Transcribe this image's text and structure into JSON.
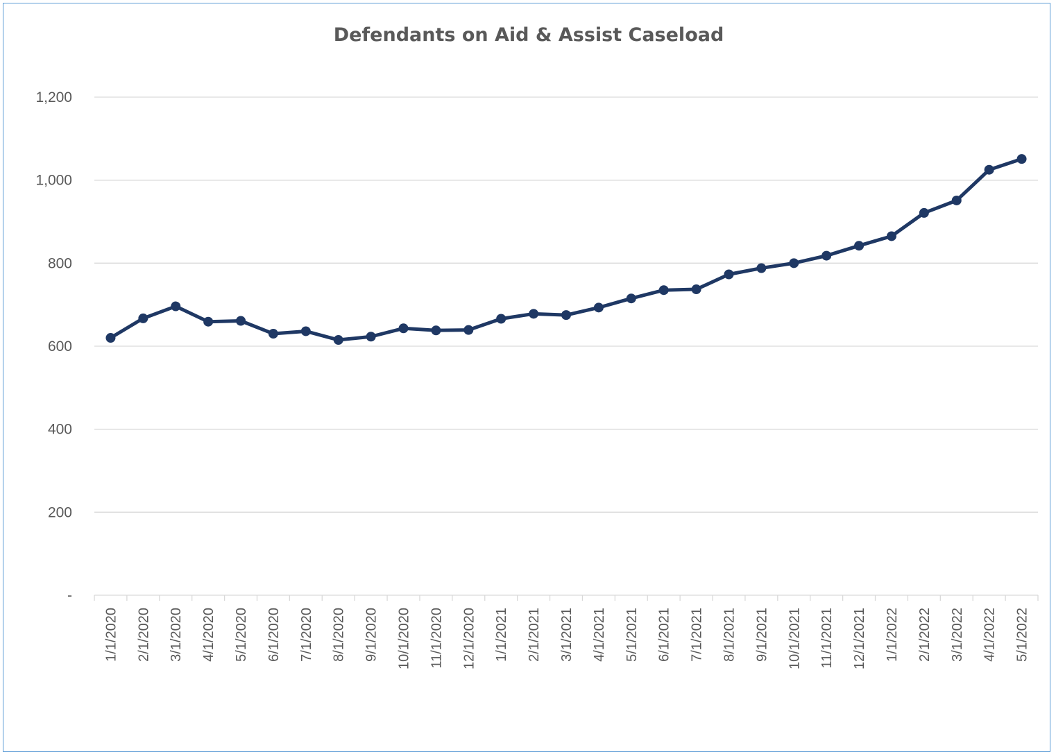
{
  "chart_data": {
    "type": "line",
    "title": "Defendants on Aid & Assist Caseload",
    "xlabel": "",
    "ylabel": "",
    "ylim": [
      0,
      1200
    ],
    "yticks": [
      {
        "value": 0,
        "label": "-"
      },
      {
        "value": 200,
        "label": "200"
      },
      {
        "value": 400,
        "label": "400"
      },
      {
        "value": 600,
        "label": "600"
      },
      {
        "value": 800,
        "label": "800"
      },
      {
        "value": 1000,
        "label": "1,000"
      },
      {
        "value": 1200,
        "label": "1,200"
      }
    ],
    "grid": true,
    "legend": "none",
    "line_color": "#1f3864",
    "categories": [
      "1/1/2020",
      "2/1/2020",
      "3/1/2020",
      "4/1/2020",
      "5/1/2020",
      "6/1/2020",
      "7/1/2020",
      "8/1/2020",
      "9/1/2020",
      "10/1/2020",
      "11/1/2020",
      "12/1/2020",
      "1/1/2021",
      "2/1/2021",
      "3/1/2021",
      "4/1/2021",
      "5/1/2021",
      "6/1/2021",
      "7/1/2021",
      "8/1/2021",
      "9/1/2021",
      "10/1/2021",
      "11/1/2021",
      "12/1/2021",
      "1/1/2022",
      "2/1/2022",
      "3/1/2022",
      "4/1/2022",
      "5/1/2022"
    ],
    "series": [
      {
        "values": [
          620,
          667,
          696,
          659,
          661,
          630,
          636,
          615,
          623,
          643,
          638,
          639,
          666,
          678,
          675,
          693,
          715,
          735,
          737,
          773,
          788,
          800,
          818,
          842,
          865,
          921,
          951,
          1025,
          1051
        ]
      }
    ]
  }
}
